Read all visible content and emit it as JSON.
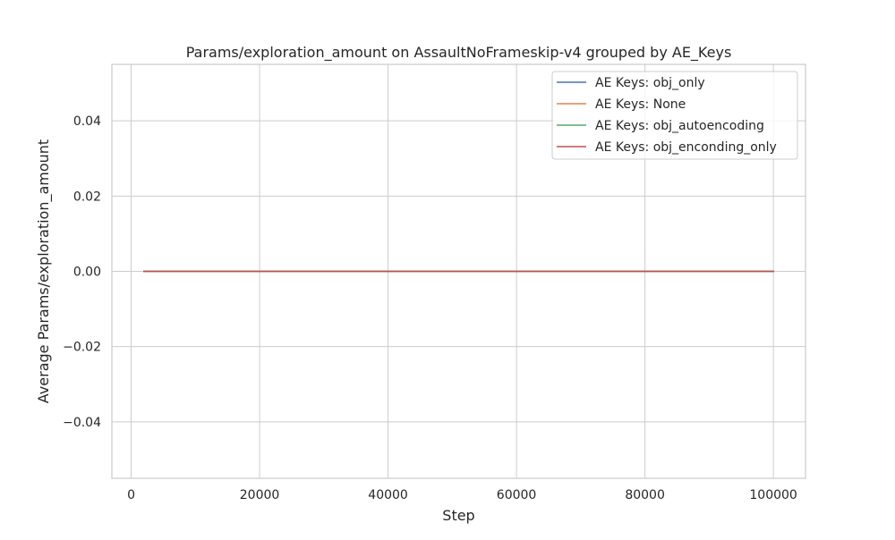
{
  "chart_data": {
    "type": "line",
    "title": "Params/exploration_amount on AssaultNoFrameskip-v4 grouped by AE_Keys",
    "xlabel": "Step",
    "ylabel": "Average Params/exploration_amount",
    "xlim": [
      -3000,
      105000
    ],
    "ylim": [
      -0.055,
      0.055
    ],
    "xticks": [
      0,
      20000,
      40000,
      60000,
      80000,
      100000
    ],
    "xtick_labels": [
      "0",
      "20000",
      "40000",
      "60000",
      "80000",
      "100000"
    ],
    "yticks": [
      -0.04,
      -0.02,
      0.0,
      0.02,
      0.04
    ],
    "ytick_labels": [
      "−0.04",
      "−0.02",
      "0.00",
      "0.02",
      "0.04"
    ],
    "grid": true,
    "legend_position": "top-right",
    "series": [
      {
        "name": "AE Keys: obj_only",
        "color": "#4c72b0",
        "x": [
          2000,
          100000
        ],
        "y": [
          0,
          0
        ]
      },
      {
        "name": "AE Keys: None",
        "color": "#dd8452",
        "x": [
          2000,
          100000
        ],
        "y": [
          0,
          0
        ]
      },
      {
        "name": "AE Keys: obj_autoencoding",
        "color": "#55a868",
        "x": [
          2000,
          100000
        ],
        "y": [
          0,
          0
        ]
      },
      {
        "name": "AE Keys: obj_enconding_only",
        "color": "#c44e52",
        "x": [
          2000,
          100000
        ],
        "y": [
          0,
          0
        ]
      }
    ]
  }
}
